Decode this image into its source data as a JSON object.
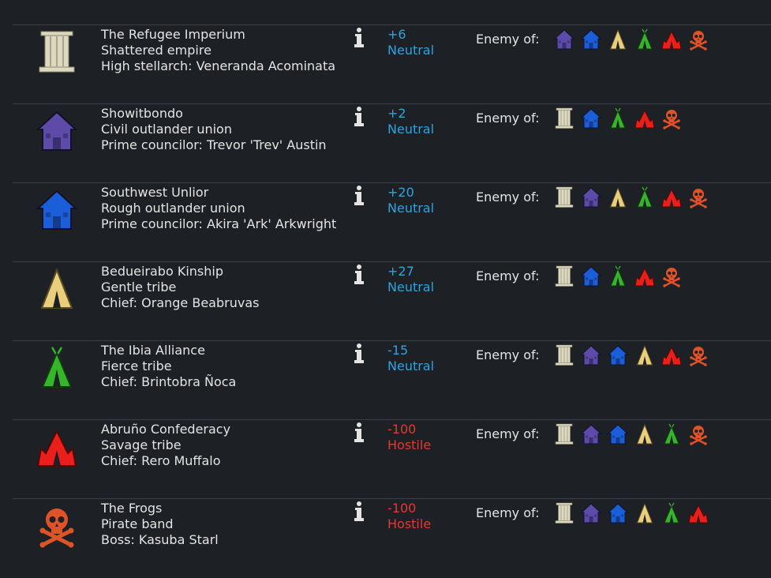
{
  "enemy_of_label": "Enemy of:",
  "factions": [
    {
      "name": "The Refugee Imperium",
      "type": "Shattered empire",
      "leader": "High stellarch: Veneranda Acominata",
      "goodwill": "+6",
      "status": "Neutral",
      "status_class": "neutral",
      "icon": "pillar-icon",
      "enemies": [
        "house-purple-icon",
        "house-blue-icon",
        "tent-yellow-icon",
        "tent-green-icon",
        "tent-red-icon",
        "skull-icon"
      ]
    },
    {
      "name": "Showitbondo",
      "type": "Civil outlander union",
      "leader": "Prime councilor: Trevor 'Trev' Austin",
      "goodwill": "+2",
      "status": "Neutral",
      "status_class": "neutral",
      "icon": "house-purple-icon",
      "enemies": [
        "pillar-icon",
        "house-blue-icon",
        "tent-green-icon",
        "tent-red-icon",
        "skull-icon"
      ]
    },
    {
      "name": "Southwest Unlior",
      "type": "Rough outlander union",
      "leader": "Prime councilor: Akira 'Ark' Arkwright",
      "goodwill": "+20",
      "status": "Neutral",
      "status_class": "neutral",
      "icon": "house-blue-icon",
      "enemies": [
        "pillar-icon",
        "house-purple-icon",
        "tent-yellow-icon",
        "tent-green-icon",
        "tent-red-icon",
        "skull-icon"
      ]
    },
    {
      "name": "Bedueirabo Kinship",
      "type": "Gentle tribe",
      "leader": "Chief: Orange Beabruvas",
      "goodwill": "+27",
      "status": "Neutral",
      "status_class": "neutral",
      "icon": "tent-yellow-icon",
      "enemies": [
        "pillar-icon",
        "house-blue-icon",
        "tent-green-icon",
        "tent-red-icon",
        "skull-icon"
      ]
    },
    {
      "name": "The Ibia Alliance",
      "type": "Fierce tribe",
      "leader": "Chief: Brintobra Ñoca",
      "goodwill": "-15",
      "status": "Neutral",
      "status_class": "neutral",
      "icon": "tent-green-icon",
      "enemies": [
        "pillar-icon",
        "house-purple-icon",
        "house-blue-icon",
        "tent-yellow-icon",
        "tent-red-icon",
        "skull-icon"
      ]
    },
    {
      "name": "Abruño Confederacy",
      "type": "Savage tribe",
      "leader": "Chief: Rero Muffalo",
      "goodwill": "-100",
      "status": "Hostile",
      "status_class": "hostile",
      "icon": "tent-red-icon",
      "enemies": [
        "pillar-icon",
        "house-purple-icon",
        "house-blue-icon",
        "tent-yellow-icon",
        "tent-green-icon",
        "skull-icon"
      ]
    },
    {
      "name": "The Frogs",
      "type": "Pirate band",
      "leader": "Boss: Kasuba Starl",
      "goodwill": "-100",
      "status": "Hostile",
      "status_class": "hostile",
      "icon": "skull-icon",
      "enemies": [
        "pillar-icon",
        "house-purple-icon",
        "house-blue-icon",
        "tent-yellow-icon",
        "tent-green-icon",
        "tent-red-icon"
      ]
    }
  ],
  "icon_colors": {
    "pillar-icon": "#ddd9c0",
    "house-purple-icon": "#5e4aa8",
    "house-blue-icon": "#1a5ed9",
    "tent-yellow-icon": "#e9cf7c",
    "tent-green-icon": "#35b52a",
    "tent-red-icon": "#ea1f1a",
    "skull-icon": "#de5328"
  }
}
